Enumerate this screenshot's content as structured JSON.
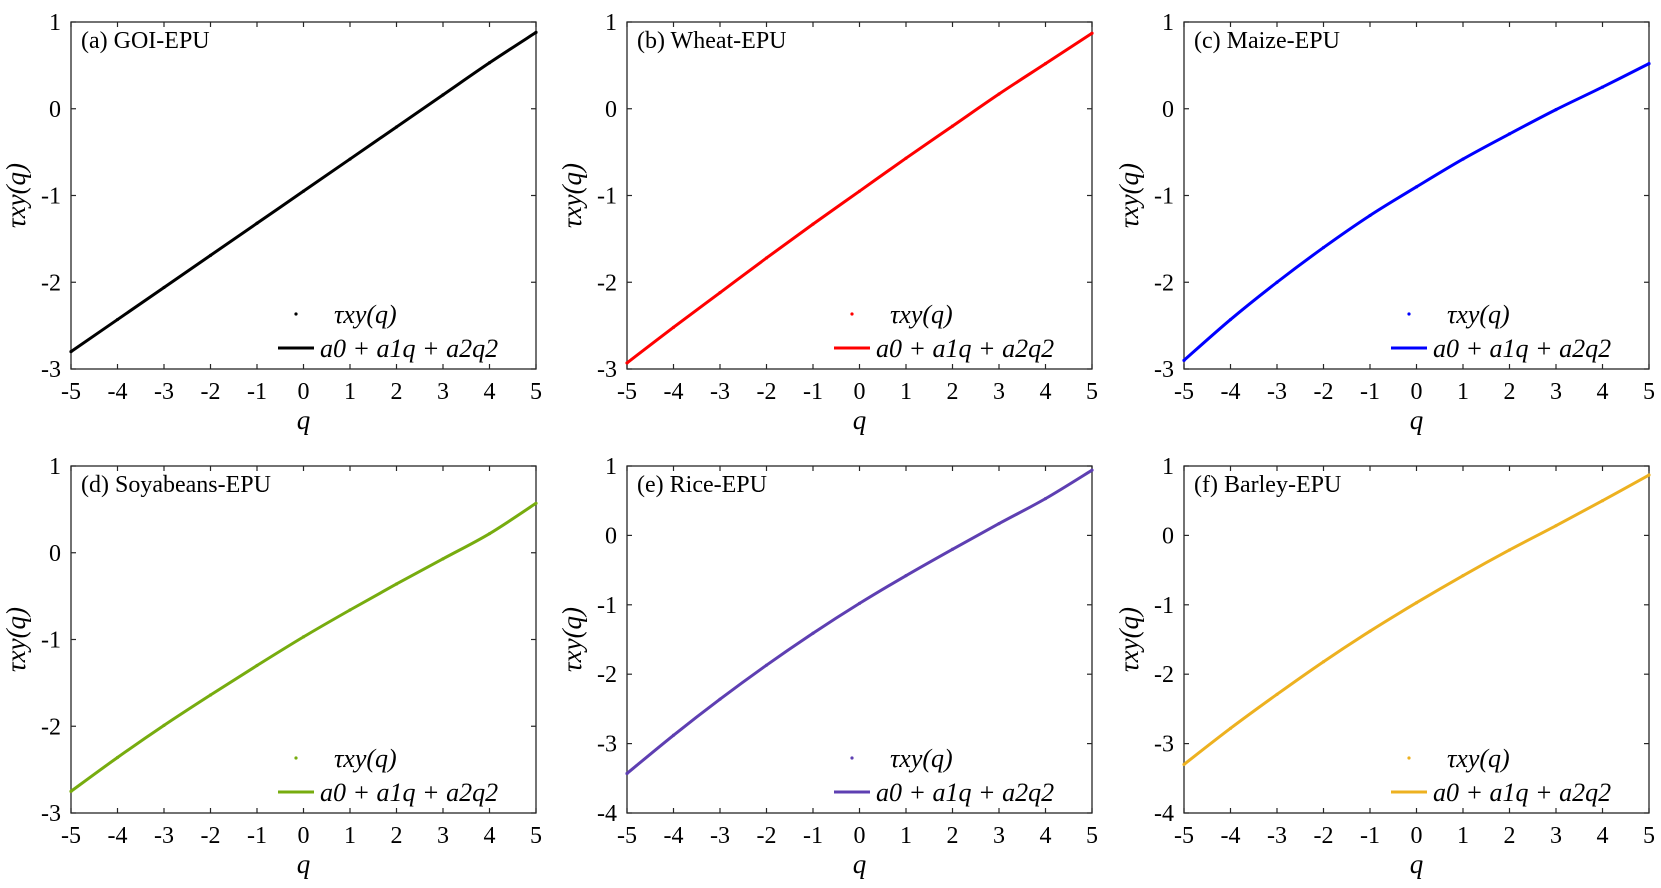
{
  "chart_data": [
    {
      "type": "line",
      "title": "(a) GOI-EPU",
      "xlabel": "q",
      "ylabel": "τxy(q)",
      "xlim": [
        -5,
        5
      ],
      "ylim": [
        -3,
        1
      ],
      "xticks": [
        "-5",
        "-4",
        "-3",
        "-2",
        "-1",
        "0",
        "1",
        "2",
        "3",
        "4",
        "5"
      ],
      "yticks": [
        "1",
        "0",
        "-1",
        "-2",
        "-3"
      ],
      "color": "#000000",
      "legend_position": "bottom-right",
      "series": [
        {
          "name": "τxy(q)",
          "style": "points",
          "x": [
            -5,
            -4,
            -3,
            -2,
            -1,
            0,
            1,
            2,
            3,
            4,
            5
          ],
          "values": [
            -2.8,
            -2.43,
            -2.06,
            -1.69,
            -1.32,
            -0.95,
            -0.58,
            -0.21,
            0.16,
            0.53,
            0.88
          ]
        },
        {
          "name": "a0 + a1q + a2q2",
          "style": "line",
          "x": [
            -5,
            -4,
            -3,
            -2,
            -1,
            0,
            1,
            2,
            3,
            4,
            5
          ],
          "values": [
            -2.8,
            -2.43,
            -2.06,
            -1.69,
            -1.32,
            -0.95,
            -0.58,
            -0.21,
            0.16,
            0.53,
            0.88
          ]
        }
      ]
    },
    {
      "type": "line",
      "title": "(b) Wheat-EPU",
      "xlabel": "q",
      "ylabel": "τxy(q)",
      "xlim": [
        -5,
        5
      ],
      "ylim": [
        -3,
        1
      ],
      "xticks": [
        "-5",
        "-4",
        "-3",
        "-2",
        "-1",
        "0",
        "1",
        "2",
        "3",
        "4",
        "5"
      ],
      "yticks": [
        "1",
        "0",
        "-1",
        "-2",
        "-3"
      ],
      "color": "#ff0000",
      "legend_position": "bottom-right",
      "series": [
        {
          "name": "τxy(q)",
          "style": "points",
          "x": [
            -5,
            -4,
            -3,
            -2,
            -1,
            0,
            1,
            2,
            3,
            4,
            5
          ],
          "values": [
            -2.93,
            -2.52,
            -2.12,
            -1.72,
            -1.33,
            -0.95,
            -0.57,
            -0.2,
            0.17,
            0.52,
            0.87
          ]
        },
        {
          "name": "a0 + a1q + a2q2",
          "style": "line",
          "x": [
            -5,
            -4,
            -3,
            -2,
            -1,
            0,
            1,
            2,
            3,
            4,
            5
          ],
          "values": [
            -2.93,
            -2.52,
            -2.12,
            -1.72,
            -1.33,
            -0.95,
            -0.57,
            -0.2,
            0.17,
            0.52,
            0.87
          ]
        }
      ]
    },
    {
      "type": "line",
      "title": "(c) Maize-EPU",
      "xlabel": "q",
      "ylabel": "τxy(q)",
      "xlim": [
        -5,
        5
      ],
      "ylim": [
        -3,
        1
      ],
      "xticks": [
        "-5",
        "-4",
        "-3",
        "-2",
        "-1",
        "0",
        "1",
        "2",
        "3",
        "4",
        "5"
      ],
      "yticks": [
        "1",
        "0",
        "-1",
        "-2",
        "-3"
      ],
      "color": "#0000ff",
      "legend_position": "bottom-right",
      "series": [
        {
          "name": "τxy(q)",
          "style": "points",
          "x": [
            -5,
            -4,
            -3,
            -2,
            -1,
            0,
            1,
            2,
            3,
            4,
            5
          ],
          "values": [
            -2.9,
            -2.43,
            -2.0,
            -1.6,
            -1.23,
            -0.9,
            -0.58,
            -0.29,
            -0.01,
            0.25,
            0.52
          ]
        },
        {
          "name": "a0 + a1q + a2q2",
          "style": "line",
          "x": [
            -5,
            -4,
            -3,
            -2,
            -1,
            0,
            1,
            2,
            3,
            4,
            5
          ],
          "values": [
            -2.9,
            -2.43,
            -2.0,
            -1.6,
            -1.23,
            -0.9,
            -0.58,
            -0.29,
            -0.01,
            0.25,
            0.52
          ]
        }
      ]
    },
    {
      "type": "line",
      "title": "(d) Soyabeans-EPU",
      "xlabel": "q",
      "ylabel": "τxy(q)",
      "xlim": [
        -5,
        5
      ],
      "ylim": [
        -3,
        1
      ],
      "xticks": [
        "-5",
        "-4",
        "-3",
        "-2",
        "-1",
        "0",
        "1",
        "2",
        "3",
        "4",
        "5"
      ],
      "yticks": [
        "1",
        "0",
        "-1",
        "-2",
        "-3"
      ],
      "color": "#77ac0f",
      "legend_position": "bottom-right",
      "series": [
        {
          "name": "τxy(q)",
          "style": "points",
          "x": [
            -5,
            -4,
            -3,
            -2,
            -1,
            0,
            1,
            2,
            3,
            4,
            5
          ],
          "values": [
            -2.75,
            -2.36,
            -1.99,
            -1.64,
            -1.3,
            -0.97,
            -0.66,
            -0.36,
            -0.07,
            0.22,
            0.57
          ]
        },
        {
          "name": "a0 + a1q + a2q2",
          "style": "line",
          "x": [
            -5,
            -4,
            -3,
            -2,
            -1,
            0,
            1,
            2,
            3,
            4,
            5
          ],
          "values": [
            -2.75,
            -2.36,
            -1.99,
            -1.64,
            -1.3,
            -0.97,
            -0.66,
            -0.36,
            -0.07,
            0.22,
            0.57
          ]
        }
      ]
    },
    {
      "type": "line",
      "title": "(e) Rice-EPU",
      "xlabel": "q",
      "ylabel": "τxy(q)",
      "xlim": [
        -5,
        5
      ],
      "ylim": [
        -4,
        1
      ],
      "xticks": [
        "-5",
        "-4",
        "-3",
        "-2",
        "-1",
        "0",
        "1",
        "2",
        "3",
        "4",
        "5"
      ],
      "yticks": [
        "1",
        "0",
        "-1",
        "-2",
        "-3",
        "-4"
      ],
      "color": "#5e3fb2",
      "legend_position": "bottom-right",
      "series": [
        {
          "name": "τxy(q)",
          "style": "points",
          "x": [
            -5,
            -4,
            -3,
            -2,
            -1,
            0,
            1,
            2,
            3,
            4,
            5
          ],
          "values": [
            -3.43,
            -2.88,
            -2.36,
            -1.87,
            -1.41,
            -0.98,
            -0.58,
            -0.2,
            0.17,
            0.53,
            0.94
          ]
        },
        {
          "name": "a0 + a1q + a2q2",
          "style": "line",
          "x": [
            -5,
            -4,
            -3,
            -2,
            -1,
            0,
            1,
            2,
            3,
            4,
            5
          ],
          "values": [
            -3.43,
            -2.88,
            -2.36,
            -1.87,
            -1.41,
            -0.98,
            -0.58,
            -0.2,
            0.17,
            0.53,
            0.94
          ]
        }
      ]
    },
    {
      "type": "line",
      "title": "(f) Barley-EPU",
      "xlabel": "q",
      "ylabel": "τxy(q)",
      "xlim": [
        -5,
        5
      ],
      "ylim": [
        -4,
        1
      ],
      "xticks": [
        "-5",
        "-4",
        "-3",
        "-2",
        "-1",
        "0",
        "1",
        "2",
        "3",
        "4",
        "5"
      ],
      "yticks": [
        "1",
        "0",
        "-1",
        "-2",
        "-3",
        "-4"
      ],
      "color": "#edb120",
      "legend_position": "bottom-right",
      "series": [
        {
          "name": "τxy(q)",
          "style": "points",
          "x": [
            -5,
            -4,
            -3,
            -2,
            -1,
            0,
            1,
            2,
            3,
            4,
            5
          ],
          "values": [
            -3.3,
            -2.78,
            -2.29,
            -1.82,
            -1.38,
            -0.97,
            -0.58,
            -0.21,
            0.14,
            0.5,
            0.87
          ]
        },
        {
          "name": "a0 + a1q + a2q2",
          "style": "line",
          "x": [
            -5,
            -4,
            -3,
            -2,
            -1,
            0,
            1,
            2,
            3,
            4,
            5
          ],
          "values": [
            -3.3,
            -2.78,
            -2.29,
            -1.82,
            -1.38,
            -0.97,
            -0.58,
            -0.21,
            0.14,
            0.5,
            0.87
          ]
        }
      ]
    }
  ]
}
